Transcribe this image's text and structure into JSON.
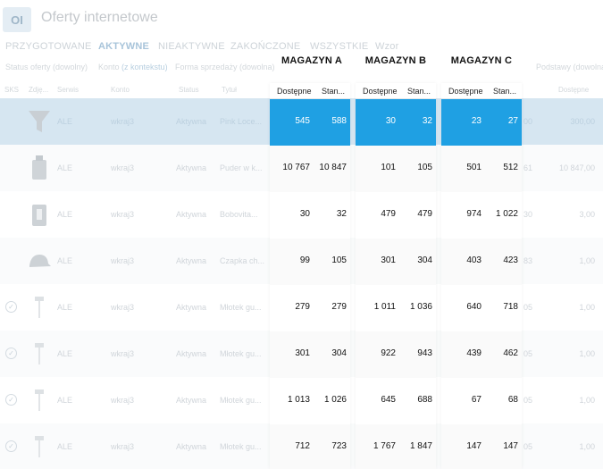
{
  "app": {
    "logo": "OI",
    "title": "Oferty internetowe"
  },
  "tabs": [
    {
      "label": "PRZYGOTOWANE",
      "active": false
    },
    {
      "label": "AKTYWNE",
      "active": true
    },
    {
      "label": "NIEAKTYWNE",
      "active": false
    },
    {
      "label": "ZAKOŃCZONE",
      "active": false
    },
    {
      "label": "WSZYSTKIE",
      "active": false
    },
    {
      "label": "Wzor",
      "active": false
    }
  ],
  "filters": [
    {
      "label": "Status oferty (dowolny)"
    },
    {
      "label": "Konto",
      "link": "(z kontekstu)"
    },
    {
      "label": "Forma sprzedaży (dowolna)"
    },
    {
      "label": "Podstawy (dowolna)"
    },
    {
      "label": "Podstawy (dowolna)"
    }
  ],
  "columns": [
    "SKS",
    "Zdję...",
    "Serwis",
    "Konto",
    "Status",
    "Tytuł",
    "Dostępne"
  ],
  "rows": [
    {
      "serwis": "ALE",
      "konto": "wkraj3",
      "status": "Aktywna",
      "tytul": "Pink Loce...",
      "suffix": "00",
      "price": "300,00",
      "icon": "funnel-icon",
      "checked": false
    },
    {
      "serwis": "ALE",
      "konto": "wkraj3",
      "status": "Aktywna",
      "tytul": "Puder w k...",
      "suffix": "61",
      "price": "10 847,00",
      "icon": "bottle-icon",
      "checked": false
    },
    {
      "serwis": "ALE",
      "konto": "wkraj3",
      "status": "Aktywna",
      "tytul": "Bobovita...",
      "suffix": "30",
      "price": "3,00",
      "icon": "jar-icon",
      "checked": false
    },
    {
      "serwis": "ALE",
      "konto": "wkraj3",
      "status": "Aktywna",
      "tytul": "Czapka ch...",
      "suffix": "83",
      "price": "1,00",
      "icon": "cap-icon",
      "checked": false
    },
    {
      "serwis": "ALE",
      "konto": "wkraj3",
      "status": "Aktywna",
      "tytul": "Młotek gu...",
      "suffix": "05",
      "price": "1,00",
      "icon": "hammer-icon",
      "checked": true
    },
    {
      "serwis": "ALE",
      "konto": "wkraj3",
      "status": "Aktywna",
      "tytul": "Młotek gu...",
      "suffix": "05",
      "price": "1,00",
      "icon": "hammer-icon",
      "checked": true
    },
    {
      "serwis": "ALE",
      "konto": "wkraj3",
      "status": "Aktywna",
      "tytul": "Młotek gu...",
      "suffix": "05",
      "price": "1,00",
      "icon": "hammer-icon",
      "checked": true
    },
    {
      "serwis": "ALE",
      "konto": "wkraj3",
      "status": "Aktywna",
      "tytul": "Młotek gu...",
      "suffix": "05",
      "price": "1,00",
      "icon": "hammer-icon",
      "checked": true
    }
  ],
  "warehouses": [
    {
      "name": "MAGAZYN A",
      "col1": "Dostępne",
      "col2": "Stan...",
      "values": [
        [
          "545",
          "588"
        ],
        [
          "10 767",
          "10 847"
        ],
        [
          "30",
          "32"
        ],
        [
          "99",
          "105"
        ],
        [
          "279",
          "279"
        ],
        [
          "301",
          "304"
        ],
        [
          "1 013",
          "1 026"
        ],
        [
          "712",
          "723"
        ]
      ]
    },
    {
      "name": "MAGAZYN B",
      "col1": "Dostępne",
      "col2": "Stan...",
      "values": [
        [
          "30",
          "32"
        ],
        [
          "101",
          "105"
        ],
        [
          "479",
          "479"
        ],
        [
          "301",
          "304"
        ],
        [
          "1 011",
          "1 036"
        ],
        [
          "922",
          "943"
        ],
        [
          "645",
          "688"
        ],
        [
          "1 767",
          "1 847"
        ]
      ]
    },
    {
      "name": "MAGAZYN C",
      "col1": "Dostępne",
      "col2": "Stan...",
      "values": [
        [
          "23",
          "27"
        ],
        [
          "501",
          "512"
        ],
        [
          "974",
          "1 022"
        ],
        [
          "403",
          "423"
        ],
        [
          "640",
          "718"
        ],
        [
          "439",
          "462"
        ],
        [
          "67",
          "68"
        ],
        [
          "147",
          "147"
        ]
      ]
    }
  ],
  "selected_row": 0,
  "colors": {
    "selection": "#1fa0e3",
    "dim_selection": "#d6e6f1"
  }
}
